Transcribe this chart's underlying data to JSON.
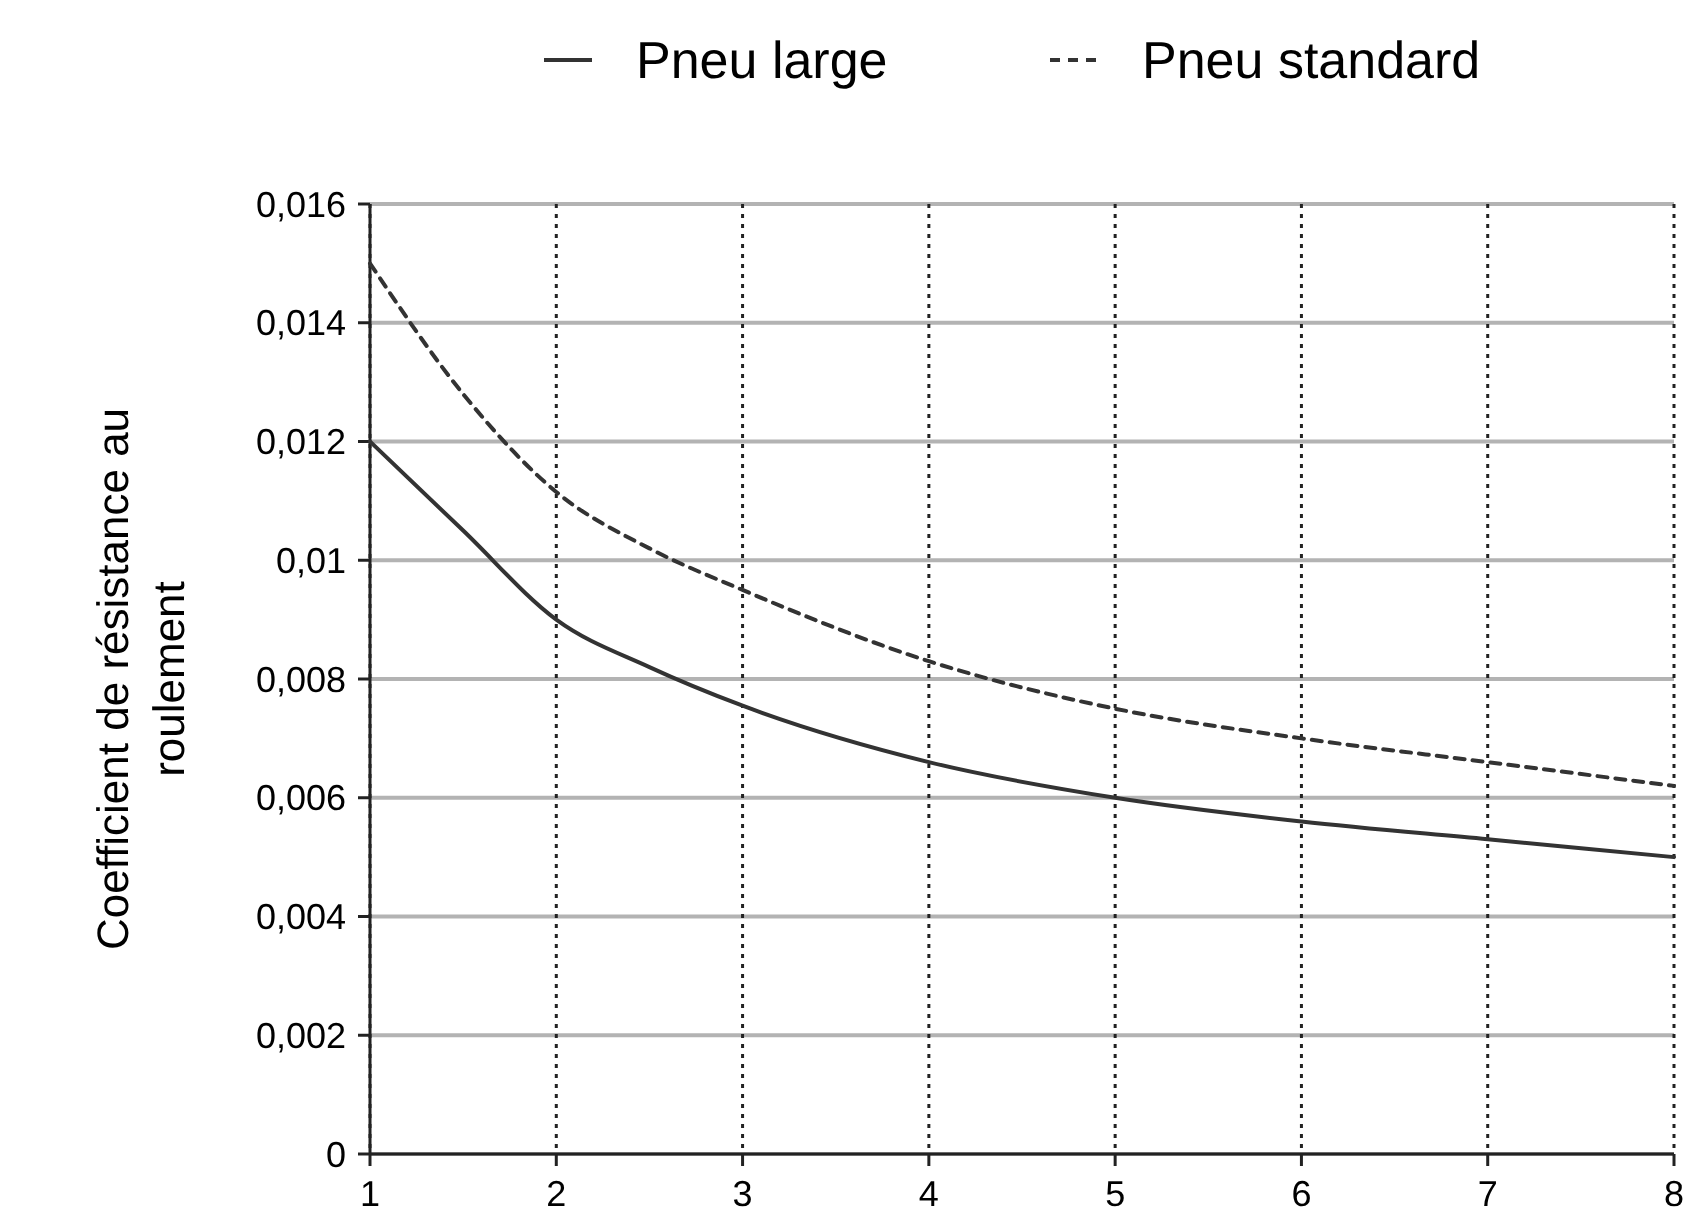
{
  "chart_data": {
    "type": "line",
    "ylabel": "Coefficient de résistance au roulement",
    "x": [
      1,
      1.5,
      2,
      2.5,
      3,
      4,
      5,
      6,
      7,
      8
    ],
    "series": [
      {
        "name": "Pneu large",
        "color": "#333333",
        "line_style": "solid",
        "values": [
          0.012,
          0.0105,
          0.009,
          0.0082,
          0.00755,
          0.0066,
          0.006,
          0.0056,
          0.0053,
          0.005
        ]
      },
      {
        "name": "Pneu standard",
        "color": "#333333",
        "line_style": "dashed",
        "values": [
          0.015,
          0.0128,
          0.01115,
          0.0102,
          0.0095,
          0.0083,
          0.0075,
          0.007,
          0.0066,
          0.0062
        ]
      }
    ],
    "xlim": [
      1,
      8
    ],
    "xticks": [
      1,
      2,
      3,
      4,
      5,
      6,
      7,
      8
    ],
    "ylim": [
      0,
      0.016
    ],
    "yticks": [
      {
        "value": 0,
        "label": "0"
      },
      {
        "value": 0.002,
        "label": "0,002"
      },
      {
        "value": 0.004,
        "label": "0,004"
      },
      {
        "value": 0.006,
        "label": "0,006"
      },
      {
        "value": 0.008,
        "label": "0,008"
      },
      {
        "value": 0.01,
        "label": "0,01"
      },
      {
        "value": 0.012,
        "label": "0,012"
      },
      {
        "value": 0.014,
        "label": "0,014"
      },
      {
        "value": 0.016,
        "label": "0,016"
      }
    ],
    "grid": true,
    "legend": "top",
    "marker": "none"
  }
}
